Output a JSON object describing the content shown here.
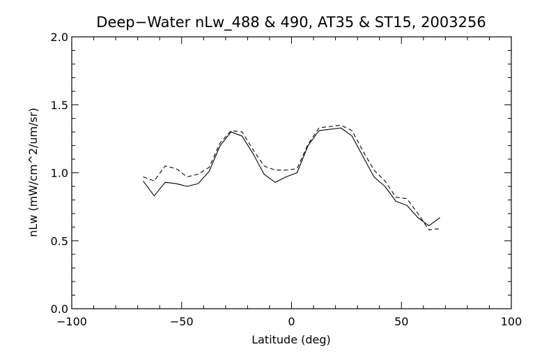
{
  "chart_data": {
    "type": "line",
    "title": "Deep−Water nLw_488 & 490, AT35 & ST15, 2003256",
    "xlabel": "Latitude (deg)",
    "ylabel": "nLw (mW/cm^2/um/sr)",
    "xlim": [
      -100,
      100
    ],
    "ylim": [
      0.0,
      2.0
    ],
    "xticks": [
      -100,
      -50,
      0,
      50,
      100
    ],
    "xtick_labels": [
      "−100",
      "−50",
      "0",
      "50",
      "100"
    ],
    "yticks": [
      0.0,
      0.5,
      1.0,
      1.5,
      2.0
    ],
    "ytick_labels": [
      "0.0",
      "0.5",
      "1.0",
      "1.5",
      "2.0"
    ],
    "x_minor_step": 10,
    "y_minor_step": 0.1,
    "grid": false,
    "series": [
      {
        "style": "solid",
        "color": "#000000",
        "x": [
          -67.5,
          -62.5,
          -57.5,
          -52.5,
          -47.5,
          -42.5,
          -37.5,
          -32.5,
          -27.5,
          -22.5,
          -17.5,
          -12.5,
          -7.5,
          -2.5,
          2.5,
          7.5,
          12.5,
          17.5,
          22.5,
          27.5,
          32.5,
          37.5,
          42.5,
          47.5,
          52.5,
          57.5,
          62.5,
          67.5
        ],
        "y": [
          0.94,
          0.83,
          0.93,
          0.92,
          0.9,
          0.92,
          1.01,
          1.2,
          1.3,
          1.27,
          1.14,
          0.99,
          0.93,
          0.97,
          1.0,
          1.2,
          1.31,
          1.32,
          1.33,
          1.27,
          1.12,
          0.97,
          0.9,
          0.79,
          0.76,
          0.67,
          0.61,
          0.67
        ]
      },
      {
        "style": "dashed",
        "color": "#000000",
        "x": [
          -67.5,
          -62.5,
          -57.5,
          -52.5,
          -47.5,
          -42.5,
          -37.5,
          -32.5,
          -27.5,
          -22.5,
          -17.5,
          -12.5,
          -7.5,
          -2.5,
          2.5,
          7.5,
          12.5,
          17.5,
          22.5,
          27.5,
          32.5,
          37.5,
          42.5,
          47.5,
          52.5,
          57.5,
          62.5,
          67.5
        ],
        "y": [
          0.97,
          0.94,
          1.05,
          1.03,
          0.97,
          0.99,
          1.04,
          1.22,
          1.31,
          1.3,
          1.17,
          1.05,
          1.02,
          1.02,
          1.03,
          1.21,
          1.33,
          1.34,
          1.35,
          1.31,
          1.16,
          1.02,
          0.94,
          0.82,
          0.81,
          0.7,
          0.58,
          0.59
        ]
      }
    ]
  }
}
